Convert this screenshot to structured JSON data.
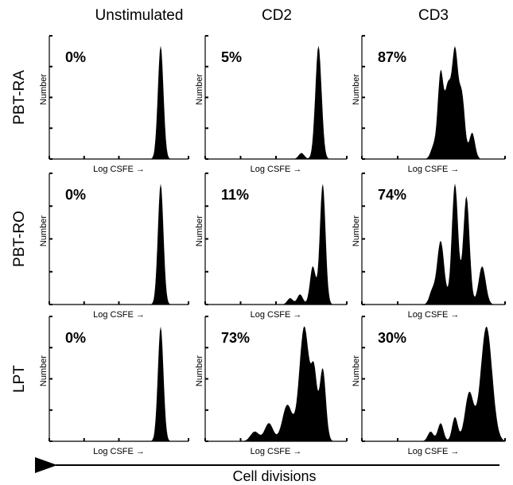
{
  "columns": [
    "Unstimulated",
    "CD2",
    "CD3"
  ],
  "rows": [
    {
      "label": "PBT-RA",
      "panels": [
        {
          "percent": "0%",
          "y_label": "Number",
          "x_label": "Log CSFE →"
        },
        {
          "percent": "5%",
          "y_label": "Number",
          "x_label": "Log CSFE →"
        },
        {
          "percent": "87%",
          "y_label": "Number",
          "x_label": "Log CSFE →"
        }
      ]
    },
    {
      "label": "PBT-RO",
      "panels": [
        {
          "percent": "0%",
          "y_label": "Number",
          "x_label": "Log CSFE →"
        },
        {
          "percent": "11%",
          "y_label": "Number",
          "x_label": "Log CSFE →"
        },
        {
          "percent": "74%",
          "y_label": "Number",
          "x_label": "Log CSFE →"
        }
      ]
    },
    {
      "label": "LPT",
      "panels": [
        {
          "percent": "0%",
          "y_label": "Number",
          "x_label": "Log CSFE →"
        },
        {
          "percent": "73%",
          "y_label": "Number",
          "x_label": "Log CSFE →"
        },
        {
          "percent": "30%",
          "y_label": "Number",
          "x_label": "Log CSFE →"
        }
      ]
    }
  ],
  "footer": {
    "label": "Cell divisions"
  }
}
